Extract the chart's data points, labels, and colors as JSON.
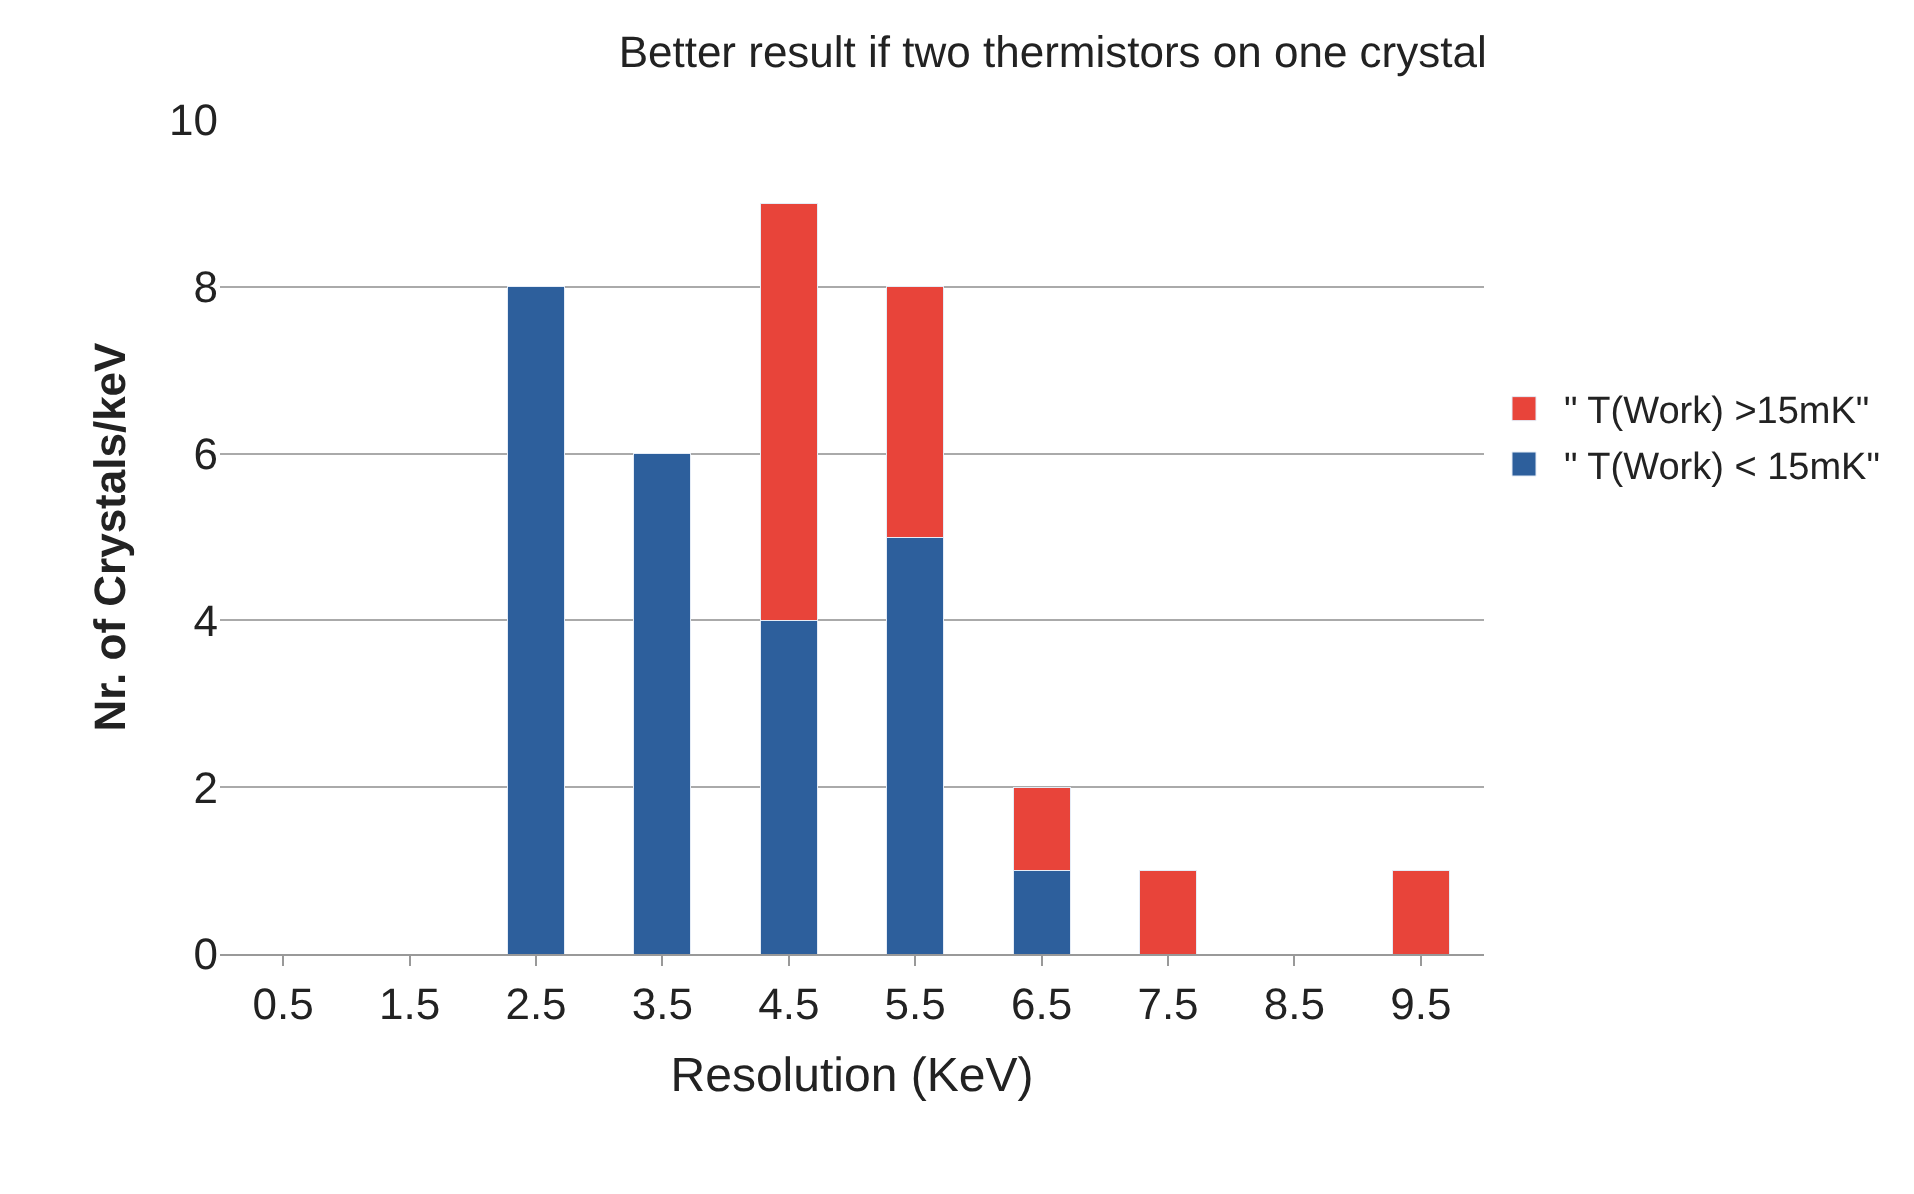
{
  "chart_data": {
    "type": "bar",
    "title": "Better result if two thermistors on one crystal",
    "xlabel": "Resolution (KeV)",
    "ylabel": "Nr. of Crystals/keV",
    "categories": [
      "0.5",
      "1.5",
      "2.5",
      "3.5",
      "4.5",
      "5.5",
      "6.5",
      "7.5",
      "8.5",
      "9.5"
    ],
    "stacked": true,
    "series": [
      {
        "name": "\" T(Work) < 15mK\"",
        "color": "#2d5f9c",
        "values": [
          null,
          null,
          8,
          6,
          4,
          5,
          1,
          null,
          null,
          null
        ]
      },
      {
        "name": "\" T(Work) >15mK\"",
        "color": "#e8443a",
        "values": [
          null,
          null,
          null,
          null,
          5,
          3,
          1,
          1,
          null,
          1
        ]
      }
    ],
    "ylim": [
      0,
      10
    ],
    "yticks": [
      0,
      2,
      4,
      6,
      8,
      10
    ],
    "grid": "y",
    "legend": "right"
  }
}
